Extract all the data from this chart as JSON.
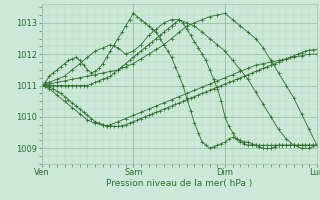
{
  "xlabel": "Pression niveau de la mer( hPa )",
  "bg_color": "#cce8d8",
  "plot_bg_color": "#cce8d8",
  "grid_major_color": "#99c4aa",
  "grid_minor_color": "#b8d8c4",
  "line_color": "#2d6e2d",
  "xlim": [
    0,
    72
  ],
  "ylim": [
    1008.5,
    1013.6
  ],
  "yticks": [
    1009,
    1010,
    1011,
    1012,
    1013
  ],
  "xtick_positions": [
    0,
    24,
    48,
    72
  ],
  "xtick_labels": [
    "Ven",
    "Sam",
    "Dim",
    "Lun"
  ],
  "series": [
    {
      "x": [
        0,
        2,
        4,
        6,
        8,
        10,
        12,
        14,
        16,
        18,
        20,
        22,
        24,
        26,
        28,
        30,
        32,
        34,
        36,
        38,
        40,
        42,
        44,
        46,
        48,
        50,
        52,
        54,
        56,
        58,
        60,
        62,
        64,
        66,
        68,
        70,
        72
      ],
      "y": [
        1011.0,
        1011.1,
        1011.2,
        1011.3,
        1011.5,
        1011.7,
        1011.9,
        1012.1,
        1012.2,
        1012.3,
        1012.2,
        1012.0,
        1012.1,
        1012.3,
        1012.6,
        1012.8,
        1013.0,
        1013.1,
        1013.1,
        1013.0,
        1012.9,
        1012.7,
        1012.5,
        1012.3,
        1012.1,
        1011.8,
        1011.5,
        1011.2,
        1010.8,
        1010.4,
        1010.0,
        1009.6,
        1009.3,
        1009.1,
        1009.0,
        1009.0,
        1009.1
      ]
    },
    {
      "x": [
        0,
        2,
        4,
        6,
        8,
        10,
        12,
        14,
        16,
        18,
        20,
        22,
        24,
        26,
        28,
        30,
        32,
        34,
        36,
        38,
        40,
        42,
        44,
        46,
        48,
        50,
        52,
        54,
        56,
        58,
        60,
        62,
        64,
        66,
        68,
        70,
        72
      ],
      "y": [
        1011.0,
        1011.05,
        1011.1,
        1011.15,
        1011.2,
        1011.25,
        1011.3,
        1011.35,
        1011.4,
        1011.45,
        1011.5,
        1011.6,
        1011.7,
        1011.85,
        1012.0,
        1012.15,
        1012.3,
        1012.5,
        1012.7,
        1012.9,
        1013.0,
        1013.1,
        1013.2,
        1013.25,
        1013.3,
        1013.1,
        1012.9,
        1012.7,
        1012.5,
        1012.2,
        1011.8,
        1011.4,
        1011.0,
        1010.6,
        1010.1,
        1009.6,
        1009.1
      ]
    },
    {
      "x": [
        0,
        2,
        4,
        6,
        8,
        10,
        12,
        14,
        16,
        17,
        18,
        20,
        22,
        24,
        26,
        28,
        30,
        32,
        34,
        36,
        38,
        40,
        42,
        44,
        46,
        48,
        50,
        52,
        54,
        56,
        58,
        60,
        62,
        64,
        66,
        68,
        70,
        72
      ],
      "y": [
        1011.0,
        1010.9,
        1010.7,
        1010.5,
        1010.3,
        1010.1,
        1009.9,
        1009.8,
        1009.75,
        1009.7,
        1009.75,
        1009.85,
        1009.95,
        1010.05,
        1010.15,
        1010.25,
        1010.35,
        1010.45,
        1010.55,
        1010.65,
        1010.75,
        1010.85,
        1010.95,
        1011.05,
        1011.15,
        1011.25,
        1011.35,
        1011.45,
        1011.55,
        1011.65,
        1011.7,
        1011.75,
        1011.8,
        1011.85,
        1011.9,
        1011.95,
        1012.0,
        1012.0
      ]
    },
    {
      "x": [
        0,
        1,
        2,
        3,
        4,
        5,
        6,
        7,
        8,
        9,
        10,
        11,
        12,
        13,
        14,
        15,
        16,
        17,
        18,
        19,
        20,
        21,
        22,
        23,
        24,
        25,
        26,
        27,
        28,
        29,
        30,
        31,
        32,
        33,
        34,
        35,
        36,
        37,
        38,
        39,
        40,
        41,
        42,
        43,
        44,
        45,
        46,
        47,
        48,
        49,
        50,
        51,
        52,
        53,
        54,
        55,
        56,
        57,
        58,
        59,
        60,
        61,
        62,
        63,
        64,
        65,
        66,
        67,
        68,
        69,
        70,
        71,
        72
      ],
      "y": [
        1011.0,
        1011.0,
        1010.95,
        1010.9,
        1010.82,
        1010.75,
        1010.65,
        1010.55,
        1010.45,
        1010.35,
        1010.25,
        1010.15,
        1010.05,
        1009.95,
        1009.85,
        1009.8,
        1009.75,
        1009.72,
        1009.7,
        1009.7,
        1009.7,
        1009.72,
        1009.75,
        1009.8,
        1009.85,
        1009.9,
        1009.95,
        1010.0,
        1010.05,
        1010.1,
        1010.15,
        1010.2,
        1010.25,
        1010.3,
        1010.35,
        1010.4,
        1010.45,
        1010.5,
        1010.55,
        1010.6,
        1010.65,
        1010.7,
        1010.75,
        1010.8,
        1010.85,
        1010.9,
        1010.95,
        1011.0,
        1011.05,
        1011.1,
        1011.15,
        1011.2,
        1011.25,
        1011.3,
        1011.35,
        1011.4,
        1011.45,
        1011.5,
        1011.55,
        1011.6,
        1011.65,
        1011.7,
        1011.75,
        1011.8,
        1011.85,
        1011.9,
        1011.95,
        1012.0,
        1012.05,
        1012.1,
        1012.12,
        1012.14,
        1012.15
      ]
    },
    {
      "x": [
        0,
        1,
        2,
        3,
        4,
        5,
        6,
        7,
        8,
        9,
        10,
        11,
        12,
        13,
        14,
        15,
        16,
        17,
        18,
        19,
        20,
        21,
        22,
        23,
        24,
        25,
        26,
        27,
        28,
        29,
        30,
        31,
        32,
        33,
        34,
        35,
        36,
        37,
        38,
        39,
        40,
        41,
        42,
        43,
        44,
        45,
        46,
        47,
        48,
        49,
        50,
        51,
        52,
        53,
        54,
        55,
        56,
        57,
        58,
        59,
        60,
        61,
        62,
        63,
        64,
        65,
        66,
        67,
        68,
        69,
        70,
        71,
        72
      ],
      "y": [
        1011.0,
        1011.1,
        1011.3,
        1011.4,
        1011.5,
        1011.6,
        1011.7,
        1011.8,
        1011.85,
        1011.9,
        1011.8,
        1011.65,
        1011.5,
        1011.4,
        1011.45,
        1011.55,
        1011.7,
        1011.9,
        1012.1,
        1012.3,
        1012.5,
        1012.7,
        1012.9,
        1013.1,
        1013.3,
        1013.2,
        1013.1,
        1013.0,
        1012.9,
        1012.8,
        1012.7,
        1012.5,
        1012.3,
        1012.1,
        1011.9,
        1011.6,
        1011.3,
        1011.0,
        1010.6,
        1010.2,
        1009.8,
        1009.5,
        1009.2,
        1009.1,
        1009.0,
        1009.05,
        1009.1,
        1009.15,
        1009.2,
        1009.3,
        1009.35,
        1009.3,
        1009.25,
        1009.2,
        1009.2,
        1009.15,
        1009.1,
        1009.05,
        1009.0,
        1009.0,
        1009.0,
        1009.05,
        1009.1,
        1009.1,
        1009.1,
        1009.1,
        1009.1,
        1009.1,
        1009.1,
        1009.1,
        1009.1,
        1009.1,
        1009.1
      ]
    },
    {
      "x": [
        0,
        1,
        2,
        3,
        4,
        5,
        6,
        7,
        8,
        9,
        10,
        11,
        12,
        13,
        14,
        15,
        16,
        17,
        18,
        19,
        20,
        21,
        22,
        23,
        24,
        25,
        26,
        27,
        28,
        29,
        30,
        31,
        32,
        33,
        34,
        35,
        36,
        37,
        38,
        39,
        40,
        41,
        42,
        43,
        44,
        45,
        46,
        47,
        48,
        49,
        50,
        51,
        52,
        53,
        54,
        55,
        56,
        57,
        58,
        59,
        60,
        61,
        62,
        63,
        64,
        65,
        66,
        67,
        68,
        69,
        70,
        71,
        72
      ],
      "y": [
        1011.0,
        1011.0,
        1011.0,
        1011.0,
        1011.0,
        1011.0,
        1011.0,
        1011.0,
        1011.0,
        1011.0,
        1011.0,
        1011.0,
        1011.0,
        1011.05,
        1011.1,
        1011.15,
        1011.2,
        1011.25,
        1011.3,
        1011.4,
        1011.5,
        1011.6,
        1011.7,
        1011.8,
        1011.9,
        1012.0,
        1012.1,
        1012.2,
        1012.3,
        1012.4,
        1012.5,
        1012.6,
        1012.7,
        1012.8,
        1012.9,
        1013.0,
        1013.1,
        1013.0,
        1012.8,
        1012.6,
        1012.4,
        1012.2,
        1012.0,
        1011.8,
        1011.5,
        1011.2,
        1010.9,
        1010.5,
        1010.0,
        1009.7,
        1009.5,
        1009.3,
        1009.2,
        1009.15,
        1009.1,
        1009.1,
        1009.1,
        1009.1,
        1009.1,
        1009.1,
        1009.1,
        1009.1,
        1009.1,
        1009.1,
        1009.1,
        1009.1,
        1009.1,
        1009.1,
        1009.1,
        1009.1,
        1009.1,
        1009.1,
        1009.1
      ]
    }
  ]
}
